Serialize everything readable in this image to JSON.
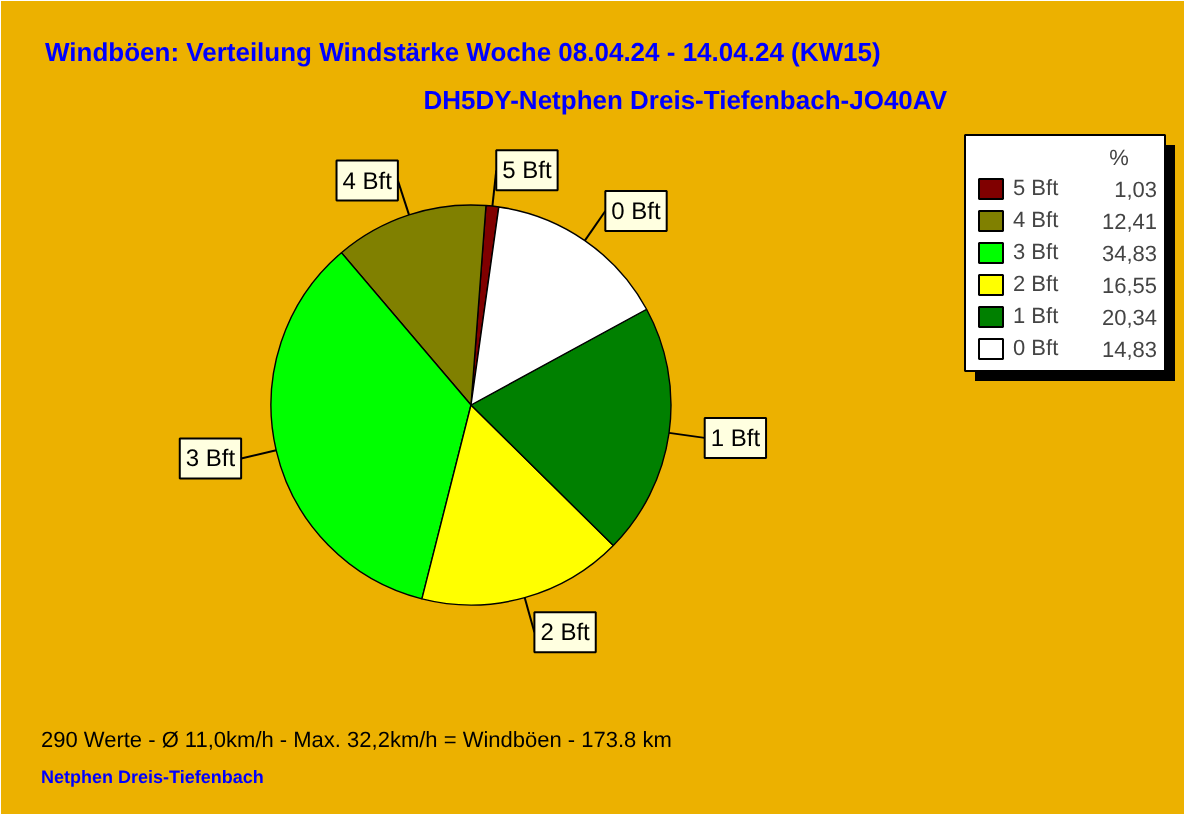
{
  "chart_data": {
    "type": "pie",
    "title": "Windböen: Verteilung Windstärke  Woche 08.04.24 - 14.04.24 (KW15)",
    "subtitle": "DH5DY-Netphen Dreis-Tiefenbach-JO40AV",
    "categories": [
      "5 Bft",
      "4 Bft",
      "3 Bft",
      "2 Bft",
      "1 Bft",
      "0 Bft"
    ],
    "values": [
      1.03,
      12.41,
      34.83,
      16.55,
      20.34,
      14.83
    ],
    "value_labels": [
      "1,03",
      "12,41",
      "34,83",
      "16,55",
      "20,34",
      "14,83"
    ],
    "colors": [
      "#800000",
      "#808000",
      "#00ff00",
      "#ffff00",
      "#008000",
      "#ffffff"
    ],
    "legend_title": "%",
    "legend": "top right",
    "annotations": [
      "290 Werte   -   Ø 11,0km/h  -  Max. 32,2km/h = Windböen   -   173.8 km",
      "Netphen Dreis-Tiefenbach"
    ]
  }
}
